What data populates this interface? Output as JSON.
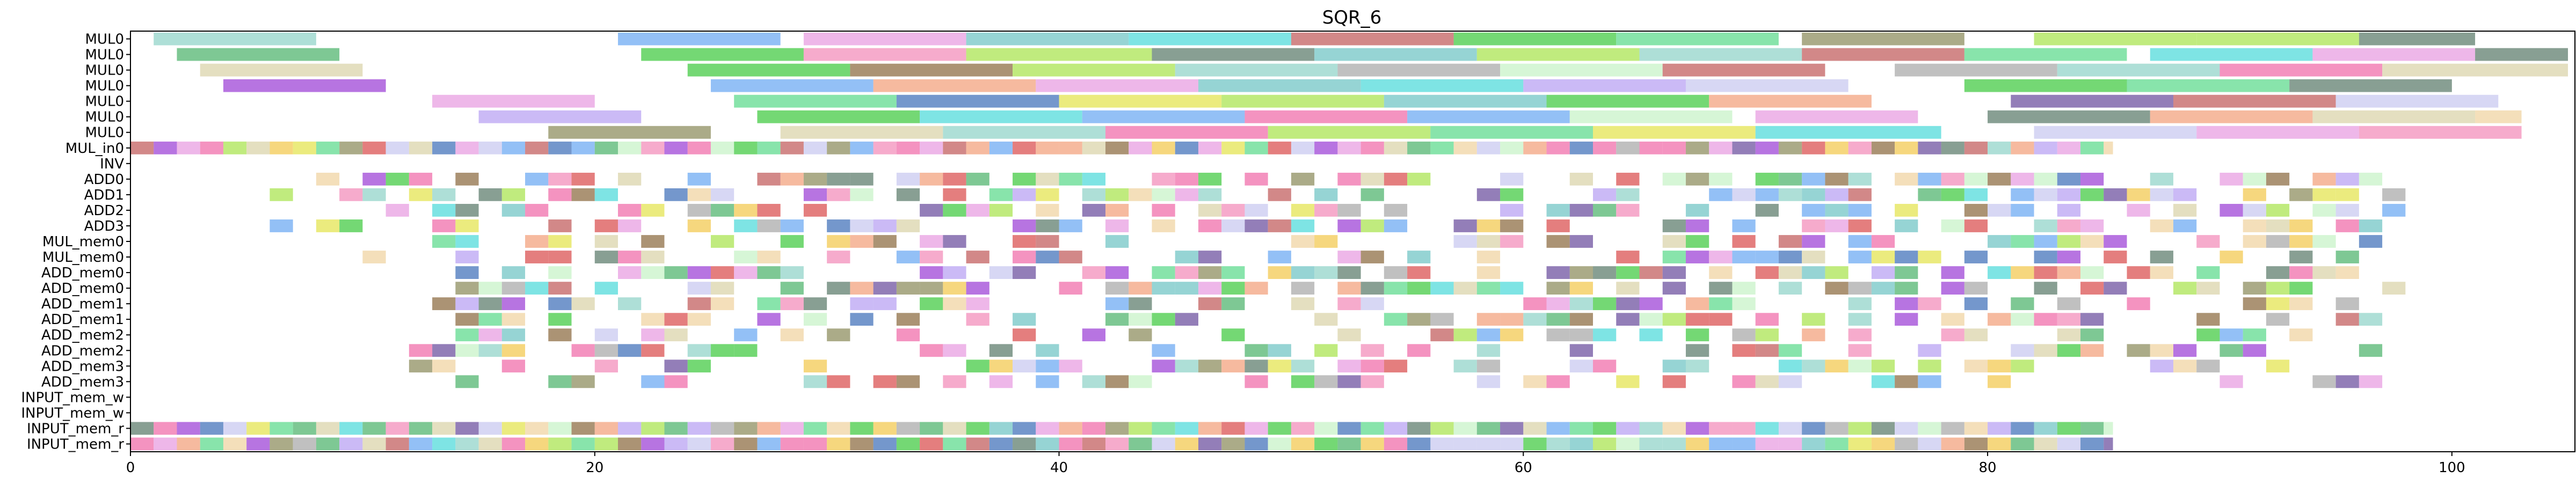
{
  "chart_data": {
    "type": "gantt",
    "title": "SQR_6",
    "xlabel": "",
    "ylabel": "",
    "xlim": [
      0,
      105.3
    ],
    "xticks": [
      0,
      20,
      40,
      60,
      80,
      100
    ],
    "grid": false,
    "rows": [
      "MUL0",
      "MUL0",
      "MUL0",
      "MUL0",
      "MUL0",
      "MUL0",
      "MUL0",
      "MUL_in0",
      "INV",
      "ADD0",
      "ADD1",
      "ADD2",
      "ADD3",
      "MUL_mem0",
      "MUL_mem0",
      "ADD_mem0",
      "ADD_mem0",
      "ADD_mem1",
      "ADD_mem1",
      "ADD_mem2",
      "ADD_mem2",
      "ADD_mem3",
      "ADD_mem3",
      "INPUT_mem_w",
      "INPUT_mem_w",
      "INPUT_mem_r",
      "INPUT_mem_r"
    ],
    "palette": [
      "#8fd3c8",
      "#4cb36b",
      "#d9d2a8",
      "#9b3fd6",
      "#6aa8f2",
      "#3ec93e",
      "#e89be0",
      "#8a8a5a",
      "#6ec4c4",
      "#f2a07a",
      "#b7a0f2",
      "#5ad98a",
      "#f06aa8",
      "#3f6fb8",
      "#a8e34c",
      "#c05a5a",
      "#e3e34c",
      "#5a7a6a",
      "#c8c8f0",
      "#f0d2a0",
      "#6a4c9c",
      "#d94c4c",
      "#4cd9d9",
      "#a8a8a8",
      "#f2c84c",
      "#8a6a3f",
      "#c6f2c6",
      "#f28ab8"
    ],
    "series": [
      {
        "row": 0,
        "tasks": [
          [
            1,
            8,
            0
          ],
          [
            21,
            28,
            4
          ],
          [
            29,
            36,
            6
          ],
          [
            36,
            43,
            8
          ],
          [
            43,
            50,
            22
          ],
          [
            50,
            57,
            15
          ],
          [
            57,
            64,
            5
          ],
          [
            64,
            71,
            11
          ],
          [
            72,
            79,
            7
          ],
          [
            82,
            89,
            14
          ],
          [
            89,
            96,
            14
          ],
          [
            96,
            101,
            17
          ]
        ]
      },
      {
        "row": 1,
        "tasks": [
          [
            2,
            9,
            1
          ],
          [
            22,
            29,
            5
          ],
          [
            29,
            36,
            27
          ],
          [
            36,
            44,
            14
          ],
          [
            44,
            51,
            17
          ],
          [
            51,
            58,
            8
          ],
          [
            58,
            65,
            14
          ],
          [
            65,
            72,
            0
          ],
          [
            72,
            79,
            15
          ],
          [
            79,
            86,
            11
          ],
          [
            87,
            94,
            22
          ],
          [
            94,
            101,
            6
          ],
          [
            101,
            105,
            17
          ]
        ]
      },
      {
        "row": 2,
        "tasks": [
          [
            3,
            10,
            2
          ],
          [
            24,
            31,
            5
          ],
          [
            31,
            38,
            25
          ],
          [
            38,
            45,
            14
          ],
          [
            45,
            52,
            0
          ],
          [
            52,
            59,
            23
          ],
          [
            59,
            66,
            26
          ],
          [
            66,
            73,
            15
          ],
          [
            76,
            83,
            23
          ],
          [
            83,
            90,
            0
          ],
          [
            90,
            97,
            12
          ],
          [
            97,
            105,
            2
          ]
        ]
      },
      {
        "row": 3,
        "tasks": [
          [
            4,
            11,
            3
          ],
          [
            25,
            32,
            4
          ],
          [
            32,
            39,
            9
          ],
          [
            39,
            46,
            6
          ],
          [
            46,
            53,
            8
          ],
          [
            53,
            60,
            22
          ],
          [
            60,
            67,
            10
          ],
          [
            67,
            74,
            18
          ],
          [
            79,
            86,
            5
          ],
          [
            86,
            93,
            11
          ],
          [
            93,
            100,
            17
          ]
        ]
      },
      {
        "row": 4,
        "tasks": [
          [
            13,
            20,
            6
          ],
          [
            26,
            33,
            11
          ],
          [
            33,
            40,
            13
          ],
          [
            40,
            47,
            16
          ],
          [
            47,
            54,
            14
          ],
          [
            54,
            61,
            8
          ],
          [
            61,
            68,
            5
          ],
          [
            68,
            75,
            9
          ],
          [
            81,
            88,
            20
          ],
          [
            88,
            95,
            15
          ],
          [
            95,
            102,
            18
          ]
        ]
      },
      {
        "row": 5,
        "tasks": [
          [
            15,
            22,
            10
          ],
          [
            27,
            34,
            5
          ],
          [
            34,
            41,
            22
          ],
          [
            41,
            48,
            4
          ],
          [
            48,
            55,
            12
          ],
          [
            55,
            62,
            4
          ],
          [
            62,
            69,
            26
          ],
          [
            70,
            77,
            6
          ],
          [
            80,
            87,
            17
          ],
          [
            87,
            94,
            9
          ],
          [
            94,
            101,
            2
          ],
          [
            101,
            103,
            19
          ]
        ]
      },
      {
        "row": 6,
        "tasks": [
          [
            18,
            25,
            7
          ],
          [
            28,
            35,
            2
          ],
          [
            35,
            42,
            0
          ],
          [
            42,
            49,
            12
          ],
          [
            49,
            56,
            14
          ],
          [
            56,
            63,
            11
          ],
          [
            63,
            70,
            16
          ],
          [
            70,
            78,
            22
          ],
          [
            82,
            89,
            18
          ],
          [
            89,
            96,
            6
          ],
          [
            96,
            103,
            27
          ]
        ]
      },
      {
        "row": 7,
        "tasks": "dense",
        "start": 0,
        "end": 85.4,
        "seed": 7
      },
      {
        "row": 9,
        "tasks": "sparse",
        "start": 8,
        "end": 99,
        "seed": 9,
        "density": 0.65
      },
      {
        "row": 10,
        "tasks": "sparse",
        "start": 6,
        "end": 98,
        "seed": 10,
        "density": 0.6
      },
      {
        "row": 11,
        "tasks": "sparse",
        "start": 10,
        "end": 98,
        "seed": 11,
        "density": 0.55
      },
      {
        "row": 12,
        "tasks": "sparse",
        "start": 5,
        "end": 98,
        "seed": 12,
        "density": 0.55
      },
      {
        "row": 13,
        "tasks": "sparse",
        "start": 10,
        "end": 98,
        "seed": 13,
        "density": 0.45
      },
      {
        "row": 14,
        "tasks": "sparse",
        "start": 10,
        "end": 98,
        "seed": 14,
        "density": 0.5
      },
      {
        "row": 15,
        "tasks": "sparse",
        "start": 14,
        "end": 98,
        "seed": 15,
        "density": 0.7
      },
      {
        "row": 16,
        "tasks": "sparse",
        "start": 14,
        "end": 98,
        "seed": 16,
        "density": 0.7
      },
      {
        "row": 17,
        "tasks": "sparse",
        "start": 12,
        "end": 97,
        "seed": 17,
        "density": 0.55
      },
      {
        "row": 18,
        "tasks": "sparse",
        "start": 12,
        "end": 97,
        "seed": 18,
        "density": 0.5
      },
      {
        "row": 19,
        "tasks": "sparse",
        "start": 12,
        "end": 97,
        "seed": 19,
        "density": 0.45
      },
      {
        "row": 20,
        "tasks": "sparse",
        "start": 12,
        "end": 97,
        "seed": 20,
        "density": 0.45
      },
      {
        "row": 21,
        "tasks": "sparse",
        "start": 12,
        "end": 97,
        "seed": 21,
        "density": 0.35
      },
      {
        "row": 22,
        "tasks": "sparse",
        "start": 14,
        "end": 97,
        "seed": 22,
        "density": 0.35
      },
      {
        "row": 25,
        "tasks": "dense",
        "start": 0,
        "end": 85.4,
        "seed": 25
      },
      {
        "row": 26,
        "tasks": "dense",
        "start": 0,
        "end": 85.4,
        "seed": 26
      }
    ]
  }
}
